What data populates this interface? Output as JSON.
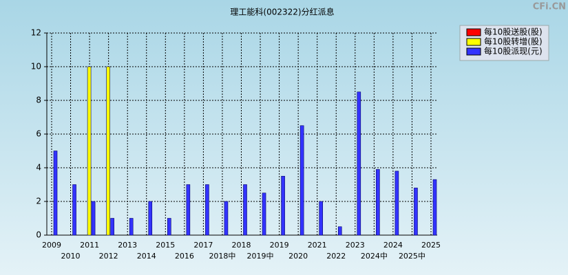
{
  "chart_data": {
    "type": "bar",
    "title": "理工能科(002322)分红派息",
    "watermark": "CFi.CN",
    "categories": [
      "2009",
      "2010",
      "2011",
      "2012",
      "2013",
      "2014",
      "2015",
      "2016",
      "2017",
      "2018中",
      "2018",
      "2019中",
      "2019",
      "2020",
      "2021",
      "2022",
      "2023",
      "2024中",
      "2024",
      "2025中",
      "2025"
    ],
    "series": [
      {
        "name": "每10股送股(股)",
        "color": "#ff0000",
        "values": [
          null,
          null,
          null,
          null,
          null,
          null,
          null,
          null,
          null,
          null,
          null,
          null,
          null,
          null,
          null,
          null,
          null,
          null,
          null,
          null,
          null
        ]
      },
      {
        "name": "每10股转增(股)",
        "color": "#ffff00",
        "values": [
          null,
          null,
          10,
          10,
          null,
          null,
          null,
          null,
          null,
          null,
          null,
          null,
          null,
          null,
          null,
          null,
          null,
          null,
          null,
          null,
          null
        ]
      },
      {
        "name": "每10股派现(元)",
        "color": "#3333ff",
        "values": [
          5,
          3,
          2,
          1,
          1,
          2,
          1,
          3,
          3,
          2,
          3,
          2.5,
          3.5,
          6.5,
          2,
          0.5,
          8.5,
          3.9,
          3.8,
          2.8,
          3.3
        ]
      }
    ],
    "ylim": [
      0,
      12
    ],
    "yticks": [
      0,
      2,
      4,
      6,
      8,
      10,
      12
    ],
    "grid": true,
    "legend": "top-right"
  }
}
